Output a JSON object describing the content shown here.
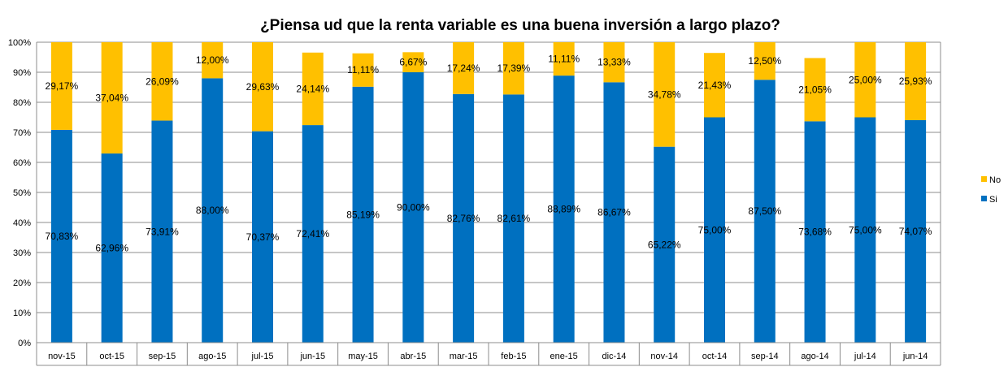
{
  "chart_data": {
    "type": "bar",
    "stacked": true,
    "title": "¿Piensa ud que la renta variable es una buena inversión a largo plazo?",
    "xlabel": "",
    "ylabel": "",
    "ylim": [
      0,
      100
    ],
    "y_ticks": [
      "0%",
      "10%",
      "20%",
      "30%",
      "40%",
      "50%",
      "60%",
      "70%",
      "80%",
      "90%",
      "100%"
    ],
    "grid": true,
    "legend_position": "right",
    "categories": [
      "nov-15",
      "oct-15",
      "sep-15",
      "ago-15",
      "jul-15",
      "jun-15",
      "may-15",
      "abr-15",
      "mar-15",
      "feb-15",
      "ene-15",
      "dic-14",
      "nov-14",
      "oct-14",
      "sep-14",
      "ago-14",
      "jul-14",
      "jun-14"
    ],
    "series": [
      {
        "name": "Si",
        "color": "#0070C0",
        "values": [
          70.83,
          62.96,
          73.91,
          88.0,
          70.37,
          72.41,
          85.19,
          90.0,
          82.76,
          82.61,
          88.89,
          86.67,
          65.22,
          75.0,
          87.5,
          73.68,
          75.0,
          74.07
        ],
        "labels": [
          "70,83%",
          "62,96%",
          "73,91%",
          "88,00%",
          "70,37%",
          "72,41%",
          "85,19%",
          "90,00%",
          "82,76%",
          "82,61%",
          "88,89%",
          "86,67%",
          "65,22%",
          "75,00%",
          "87,50%",
          "73,68%",
          "75,00%",
          "74,07%"
        ]
      },
      {
        "name": "No",
        "color": "#FFC000",
        "values": [
          29.17,
          37.04,
          26.09,
          12.0,
          29.63,
          24.14,
          11.11,
          6.67,
          17.24,
          17.39,
          11.11,
          13.33,
          34.78,
          21.43,
          12.5,
          21.05,
          25.0,
          25.93
        ],
        "labels": [
          "29,17%",
          "37,04%",
          "26,09%",
          "12,00%",
          "29,63%",
          "24,14%",
          "11,11%",
          "6,67%",
          "17,24%",
          "17,39%",
          "11,11%",
          "13,33%",
          "34,78%",
          "21,43%",
          "12,50%",
          "21,05%",
          "25,00%",
          "25,93%"
        ]
      }
    ],
    "legend": [
      {
        "name": "No",
        "color": "#FFC000"
      },
      {
        "name": "Si",
        "color": "#0070C0"
      }
    ]
  }
}
